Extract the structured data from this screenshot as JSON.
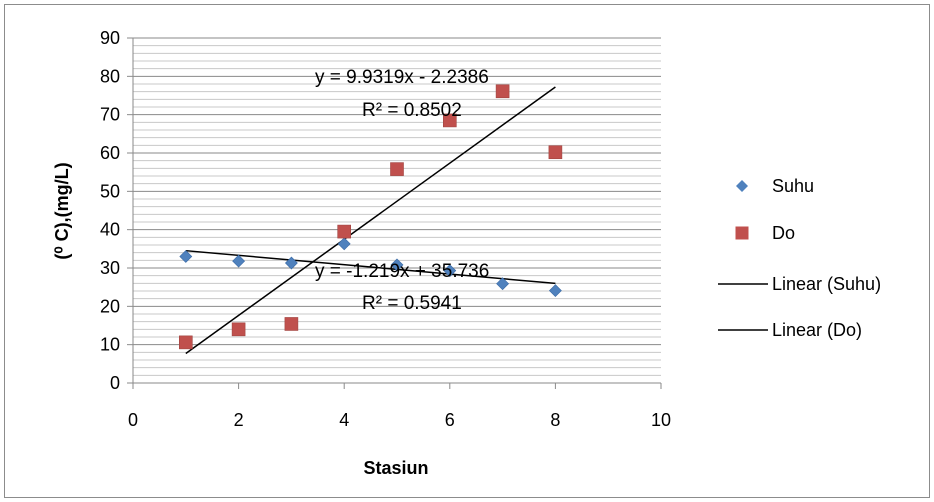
{
  "chart_data": {
    "type": "scatter",
    "title": "",
    "xlabel": "Stasiun",
    "ylabel": "(⁰ C),(mg/L)",
    "xlim": [
      0,
      10
    ],
    "ylim": [
      0,
      90
    ],
    "x_ticks": [
      "0",
      "2",
      "4",
      "6",
      "8",
      "10"
    ],
    "y_ticks": [
      "0",
      "10",
      "20",
      "30",
      "40",
      "50",
      "60",
      "70",
      "80",
      "90"
    ],
    "grid": "horizontal",
    "legend_position": "right",
    "series": [
      {
        "name": "Suhu",
        "marker": "diamond",
        "color": "#4f81bd",
        "x": [
          1,
          2,
          3,
          4,
          5,
          6,
          7,
          8
        ],
        "y": [
          33.0,
          31.8,
          31.3,
          36.3,
          30.8,
          29.3,
          25.9,
          24.1
        ]
      },
      {
        "name": "Do",
        "marker": "square",
        "color": "#c0504d",
        "x": [
          1,
          2,
          3,
          4,
          5,
          6,
          7,
          8
        ],
        "y": [
          10.6,
          14.0,
          15.4,
          39.5,
          55.8,
          68.5,
          76.1,
          60.2
        ]
      }
    ],
    "trendlines": [
      {
        "name": "Linear (Suhu)",
        "slope": -1.219,
        "intercept": 35.736,
        "x_range": [
          1,
          8
        ],
        "color": "#000000",
        "equation": "y = -1.219x + 35.736",
        "r2": "R² = 0.5941"
      },
      {
        "name": "Linear (Do)",
        "slope": 9.9319,
        "intercept": -2.2386,
        "x_range": [
          1,
          8
        ],
        "color": "#000000",
        "equation": "y = 9.9319x - 2.2386",
        "r2": "R² = 0.8502"
      }
    ]
  }
}
